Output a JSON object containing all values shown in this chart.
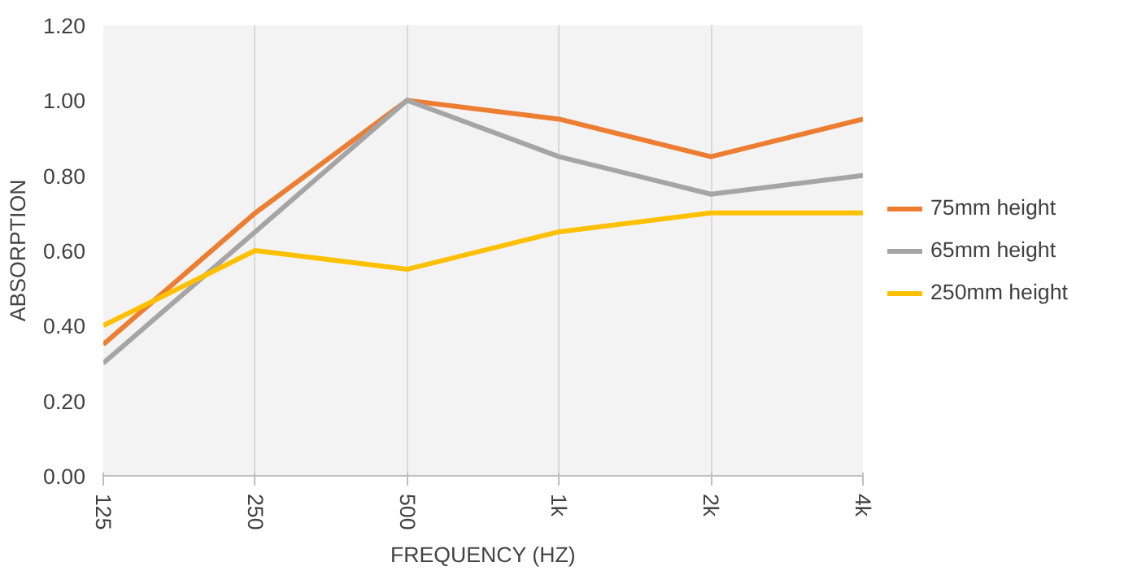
{
  "chart_data": {
    "type": "line",
    "xlabel": "FREQUENCY (HZ)",
    "ylabel": "ABSORPTION",
    "categories": [
      "125",
      "250",
      "500",
      "1k",
      "2k",
      "4k"
    ],
    "series": [
      {
        "name": "75mm height",
        "color": "#ed7d31",
        "values": [
          0.35,
          0.7,
          1.0,
          0.95,
          0.85,
          0.95
        ]
      },
      {
        "name": "65mm height",
        "color": "#a5a5a5",
        "values": [
          0.3,
          0.65,
          1.0,
          0.85,
          0.75,
          0.8
        ]
      },
      {
        "name": "250mm height",
        "color": "#ffc000",
        "values": [
          0.4,
          0.6,
          0.55,
          0.65,
          0.7,
          0.7
        ]
      }
    ],
    "ylim": [
      0,
      1.2
    ],
    "yticks": [
      {
        "value": 0,
        "label": "0.00"
      },
      {
        "value": 0.2,
        "label": "0.20"
      },
      {
        "value": 0.4,
        "label": "0.40"
      },
      {
        "value": 0.6,
        "label": "0.60"
      },
      {
        "value": 0.8,
        "label": "0.80"
      },
      {
        "value": 1.0,
        "label": "1.00"
      },
      {
        "value": 1.2,
        "label": "1.20"
      }
    ],
    "grid": "x",
    "legend": "right",
    "marker": "none",
    "line_style": "solid"
  }
}
